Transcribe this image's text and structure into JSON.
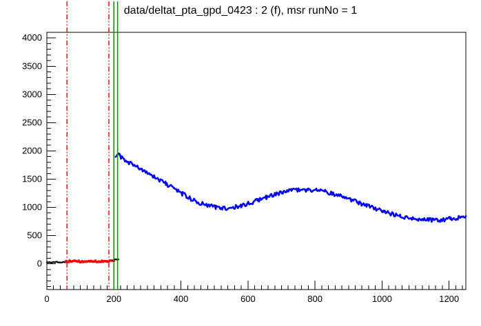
{
  "title": "data/deltat_pta_gpd_0423 : 2 (f), msr runNo = 1",
  "chart_data": {
    "type": "line",
    "title": "data/deltat_pta_gpd_0423 : 2 (f), msr runNo = 1",
    "xlabel": "",
    "ylabel": "",
    "xlim": [
      0,
      1250
    ],
    "ylim": [
      -455,
      4100
    ],
    "grid": false,
    "legend": "none",
    "background_color": "#ffffff",
    "frame_color": "#000000",
    "x_ticks": {
      "major": 200,
      "minor": 20,
      "labels": [
        "0",
        "200",
        "400",
        "600",
        "800",
        "1000",
        "1200"
      ]
    },
    "y_ticks": {
      "major": 500,
      "minor": 100,
      "labels": [
        "0",
        "500",
        "1000",
        "1500",
        "2000",
        "2500",
        "3000",
        "3500",
        "4000"
      ]
    },
    "series": [
      {
        "name": "pre-background-black-segment",
        "color": "#000000",
        "width": 2.2,
        "noise": 9,
        "step": 4,
        "anchors": [
          [
            0,
            30
          ],
          [
            15,
            28
          ],
          [
            30,
            33
          ],
          [
            45,
            29
          ],
          [
            62,
            33
          ]
        ]
      },
      {
        "name": "background-range-red-segment",
        "color": "#ff0000",
        "width": 3.4,
        "noise": 16,
        "step": 3,
        "anchors": [
          [
            56,
            46
          ],
          [
            80,
            48
          ],
          [
            105,
            42
          ],
          [
            130,
            51
          ],
          [
            155,
            45
          ],
          [
            180,
            49
          ],
          [
            200,
            50
          ]
        ]
      },
      {
        "name": "gap-black-segment",
        "color": "#000000",
        "width": 2.2,
        "noise": 10,
        "step": 3,
        "anchors": [
          [
            197,
            60
          ],
          [
            205,
            88
          ],
          [
            214,
            78
          ]
        ]
      },
      {
        "name": "muon-histogram-blue",
        "color": "#0000ff",
        "width": 2.6,
        "noise": 36,
        "step": 3,
        "anchors": [
          [
            205,
            1880
          ],
          [
            215,
            1930
          ],
          [
            230,
            1840
          ],
          [
            255,
            1760
          ],
          [
            280,
            1680
          ],
          [
            305,
            1590
          ],
          [
            330,
            1500
          ],
          [
            355,
            1420
          ],
          [
            380,
            1330
          ],
          [
            405,
            1240
          ],
          [
            430,
            1150
          ],
          [
            455,
            1080
          ],
          [
            480,
            1030
          ],
          [
            505,
            1000
          ],
          [
            530,
            985
          ],
          [
            555,
            1000
          ],
          [
            580,
            1030
          ],
          [
            605,
            1075
          ],
          [
            630,
            1125
          ],
          [
            655,
            1180
          ],
          [
            680,
            1235
          ],
          [
            705,
            1270
          ],
          [
            730,
            1300
          ],
          [
            755,
            1310
          ],
          [
            780,
            1310
          ],
          [
            805,
            1300
          ],
          [
            830,
            1275
          ],
          [
            855,
            1240
          ],
          [
            880,
            1195
          ],
          [
            905,
            1140
          ],
          [
            930,
            1085
          ],
          [
            955,
            1030
          ],
          [
            980,
            980
          ],
          [
            1005,
            930
          ],
          [
            1030,
            880
          ],
          [
            1055,
            840
          ],
          [
            1080,
            810
          ],
          [
            1105,
            790
          ],
          [
            1130,
            780
          ],
          [
            1155,
            775
          ],
          [
            1180,
            780
          ],
          [
            1205,
            800
          ],
          [
            1230,
            820
          ],
          [
            1250,
            845
          ]
        ]
      }
    ],
    "vlines": [
      {
        "name": "background-start-line",
        "x": 60,
        "color": "#ff0000",
        "style": "dashdot",
        "width": 1.4
      },
      {
        "name": "background-end-line",
        "x": 185,
        "color": "#ff0000",
        "style": "dashdot",
        "width": 1.4
      },
      {
        "name": "t0-line",
        "x": 200,
        "color": "#009900",
        "style": "solid",
        "width": 1.6
      },
      {
        "name": "first-good-bin-line",
        "x": 211,
        "color": "#009900",
        "style": "solid",
        "width": 1.6
      }
    ]
  }
}
